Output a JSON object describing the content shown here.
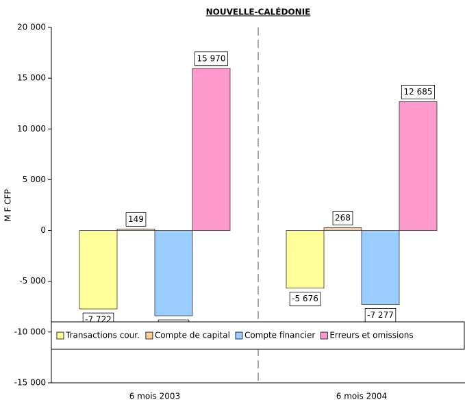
{
  "chart_data": {
    "type": "bar",
    "title": "NOUVELLE-CALÉDONIE",
    "ylabel": "M F CFP",
    "categories": [
      "6 mois 2003",
      "6 mois 2004"
    ],
    "series": [
      {
        "name": "Transactions cour.",
        "color": "#ffff99",
        "values": [
          -7722,
          -5676
        ],
        "value_labels": [
          "-7 722",
          "-5 676"
        ]
      },
      {
        "name": "Compte de capital",
        "color": "#ffcc99",
        "values": [
          149,
          268
        ],
        "value_labels": [
          "149",
          "268"
        ]
      },
      {
        "name": "Compte financier",
        "color": "#99ccff",
        "values": [
          -8397,
          -7277
        ],
        "value_labels": [
          "-8 397",
          "-7 277"
        ]
      },
      {
        "name": "Erreurs et omissions",
        "color": "#ff99cc",
        "values": [
          15970,
          12685
        ],
        "value_labels": [
          "15 970",
          "12 685"
        ]
      }
    ],
    "ylim": [
      -15000,
      20000
    ],
    "yticks": [
      {
        "value": 20000,
        "label": "20 000"
      },
      {
        "value": 15000,
        "label": "15 000"
      },
      {
        "value": 10000,
        "label": "10 000"
      },
      {
        "value": 5000,
        "label": "5 000"
      },
      0,
      {
        "value": -5000,
        "label": "-5 000"
      },
      {
        "value": -10000,
        "label": "-10 000"
      },
      {
        "value": -15000,
        "label": "-15 000"
      }
    ],
    "legend_position": "bottom"
  }
}
